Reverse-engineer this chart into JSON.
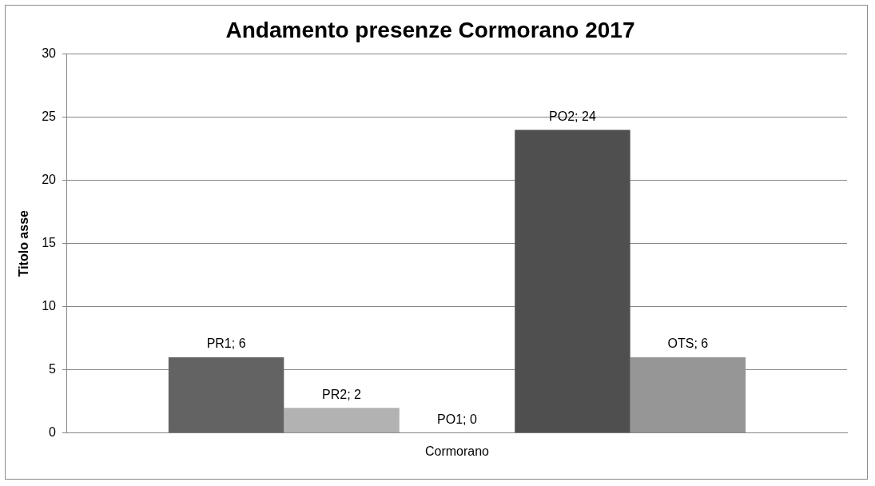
{
  "chart_data": {
    "type": "bar",
    "title": "Andamento presenze Cormorano 2017",
    "ylabel": "Titolo asse",
    "categories": [
      "Cormorano"
    ],
    "series": [
      {
        "color": "#636363",
        "values": [
          6
        ],
        "value_labels": [
          "PR1; 6"
        ]
      },
      {
        "color": "#b2b2b2",
        "values": [
          2
        ],
        "value_labels": [
          "PR2; 2"
        ]
      },
      {
        "color": "#808080",
        "values": [
          0
        ],
        "value_labels": [
          "PO1; 0"
        ]
      },
      {
        "color": "#4f4f4f",
        "values": [
          24
        ],
        "value_labels": [
          "PO2; 24"
        ]
      },
      {
        "color": "#969696",
        "values": [
          6
        ],
        "value_labels": [
          "OTS; 6"
        ]
      }
    ],
    "ylim": [
      0,
      30
    ],
    "yticks": [
      0,
      5,
      10,
      15,
      20,
      25,
      30
    ],
    "grid": "y",
    "legend": false
  }
}
